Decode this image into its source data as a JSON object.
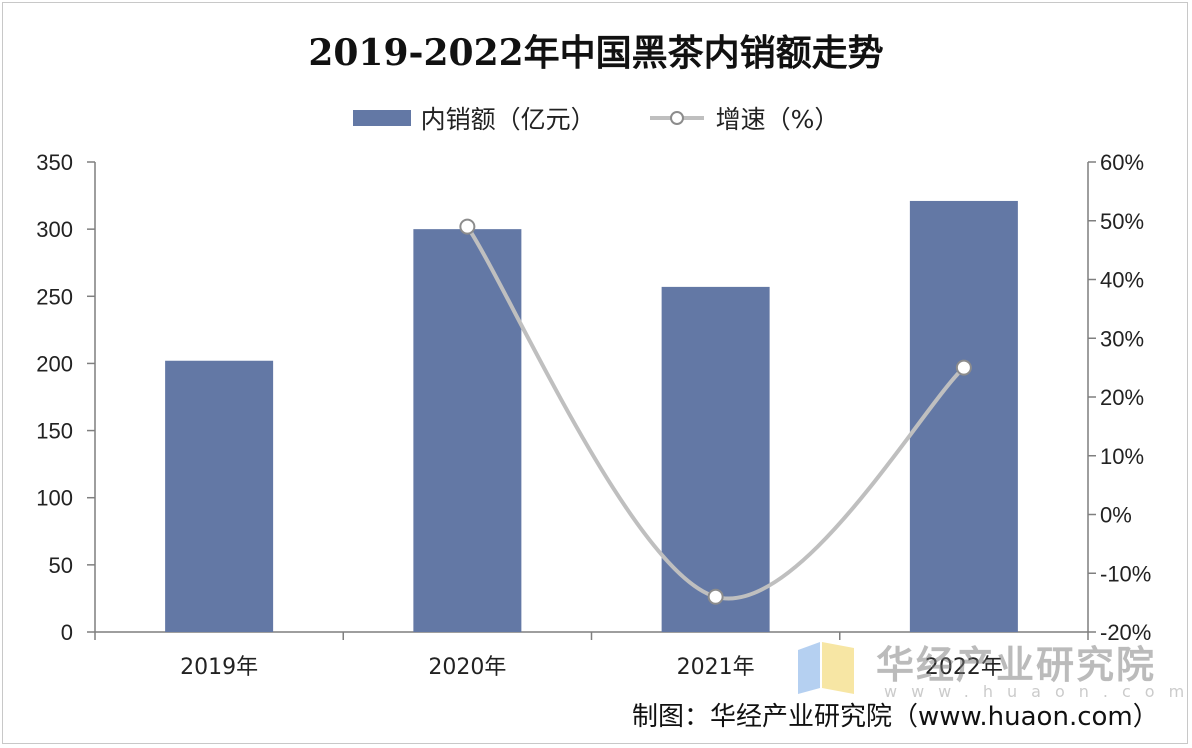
{
  "chart_data": {
    "type": "bar+line",
    "title": "2019-2022年中国黑茶内销额走势",
    "categories": [
      "2019年",
      "2020年",
      "2021年",
      "2022年"
    ],
    "series": [
      {
        "name": "内销额（亿元）",
        "type": "bar",
        "axis": "left",
        "values": [
          202,
          300,
          257,
          321
        ]
      },
      {
        "name": "增速（%）",
        "type": "line",
        "axis": "right",
        "values": [
          null,
          49,
          -14,
          25
        ]
      }
    ],
    "left_axis": {
      "ylim": [
        0,
        350
      ],
      "ticks": [
        "0",
        "50",
        "100",
        "150",
        "200",
        "250",
        "300",
        "350"
      ]
    },
    "right_axis": {
      "ylim": [
        -20,
        60
      ],
      "ticks": [
        "-20%",
        "-10%",
        "0%",
        "10%",
        "20%",
        "30%",
        "40%",
        "50%",
        "60%"
      ]
    },
    "legend_position": "top-center",
    "colors": {
      "bar": "#6378a5",
      "line": "#bfbfbf",
      "marker_fill": "#ffffff",
      "marker_stroke": "#8c8c8c"
    }
  },
  "legend": {
    "bar_label": "内销额（亿元）",
    "line_label": "增速（%）"
  },
  "watermark": {
    "name": "华经产业研究院",
    "url": "www.huaon.com"
  },
  "source": "制图：华经产业研究院（www.huaon.com）"
}
